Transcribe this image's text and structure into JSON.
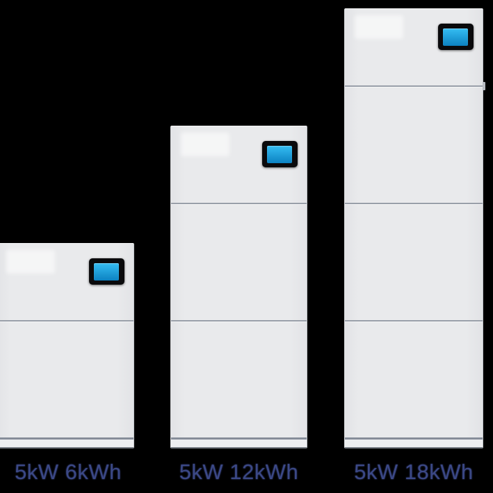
{
  "page": {
    "description": "Product lineup of three stackable home battery energy storage towers on a black background",
    "background": "#000000"
  },
  "products": [
    {
      "id": "tower-6kwh",
      "label": "5kW 6kWh",
      "power": "5kW",
      "capacity": "6kWh",
      "battery_modules": 1,
      "screen": "lcd-display-on",
      "logo": "faint-unreadable-brand-logo"
    },
    {
      "id": "tower-12kwh",
      "label": "5kW 12kWh",
      "power": "5kW",
      "capacity": "12kWh",
      "battery_modules": 2,
      "screen": "lcd-display-on",
      "logo": "faint-unreadable-brand-logo"
    },
    {
      "id": "tower-18kwh",
      "label": "5kW 18kWh",
      "power": "5kW",
      "capacity": "18kWh",
      "battery_modules": 3,
      "screen": "lcd-display-on",
      "logo": "faint-unreadable-brand-logo"
    }
  ],
  "colors": {
    "background": "#000000",
    "cabinet_face": "#e9eaec",
    "cabinet_base": "#edeef0",
    "divider": "#999fa9",
    "divider_dark": "#868d99",
    "screen_bezel": "#0a0a0c",
    "screen_blue_top": "#35bdf2",
    "screen_blue_bottom": "#0c82c2",
    "label_text": "#3b4886"
  }
}
